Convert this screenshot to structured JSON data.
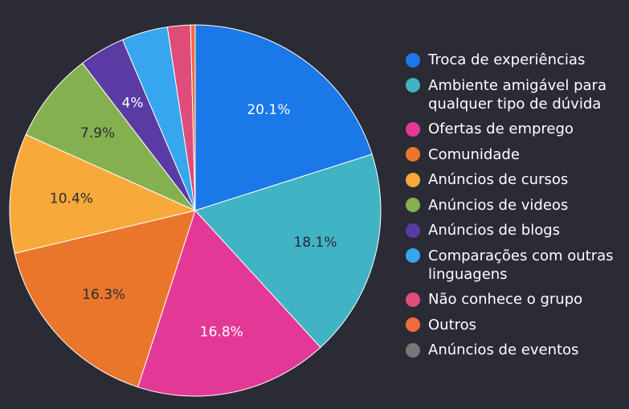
{
  "chart_data": {
    "type": "pie",
    "slices": [
      {
        "name": "Troca de experiências",
        "value": 20.1,
        "label": "20.1%",
        "color": "#1b78e8",
        "label_color": "#ffffff"
      },
      {
        "name": "Ambiente amigável para qualquer tipo de dúvida",
        "value": 18.1,
        "label": "18.1%",
        "color": "#40b3c5",
        "label_color": "#2a2b35"
      },
      {
        "name": "Ofertas de emprego",
        "value": 16.8,
        "label": "16.8%",
        "color": "#e43897",
        "label_color": "#ffffff"
      },
      {
        "name": "Comunidade",
        "value": 16.3,
        "label": "16.3%",
        "color": "#ea762c",
        "label_color": "#2a2b35"
      },
      {
        "name": "Anúncios de cursos",
        "value": 10.4,
        "label": "10.4%",
        "color": "#f7a93a",
        "label_color": "#2a2b35"
      },
      {
        "name": "Anúncios de videos",
        "value": 7.9,
        "label": "7.9%",
        "color": "#85b04f",
        "label_color": "#2a2b35"
      },
      {
        "name": "Anúncios de blogs",
        "value": 4.0,
        "label": "4%",
        "color": "#5a3ba4",
        "label_color": "#ffffff"
      },
      {
        "name": "Comparações com outras linguagens",
        "value": 4.0,
        "label": "",
        "color": "#36a6ee",
        "label_color": "#ffffff"
      },
      {
        "name": "Não conhece o grupo",
        "value": 2.0,
        "label": "",
        "color": "#de4d79",
        "label_color": "#ffffff"
      },
      {
        "name": "Outros",
        "value": 0.4,
        "label": "",
        "color": "#f06b3c",
        "label_color": "#ffffff"
      },
      {
        "name": "Anúncios de eventos",
        "value": 0.0,
        "label": "",
        "color": "#777777",
        "label_color": "#ffffff"
      }
    ],
    "start": "top",
    "direction": "clockwise",
    "legend_position": "right"
  }
}
